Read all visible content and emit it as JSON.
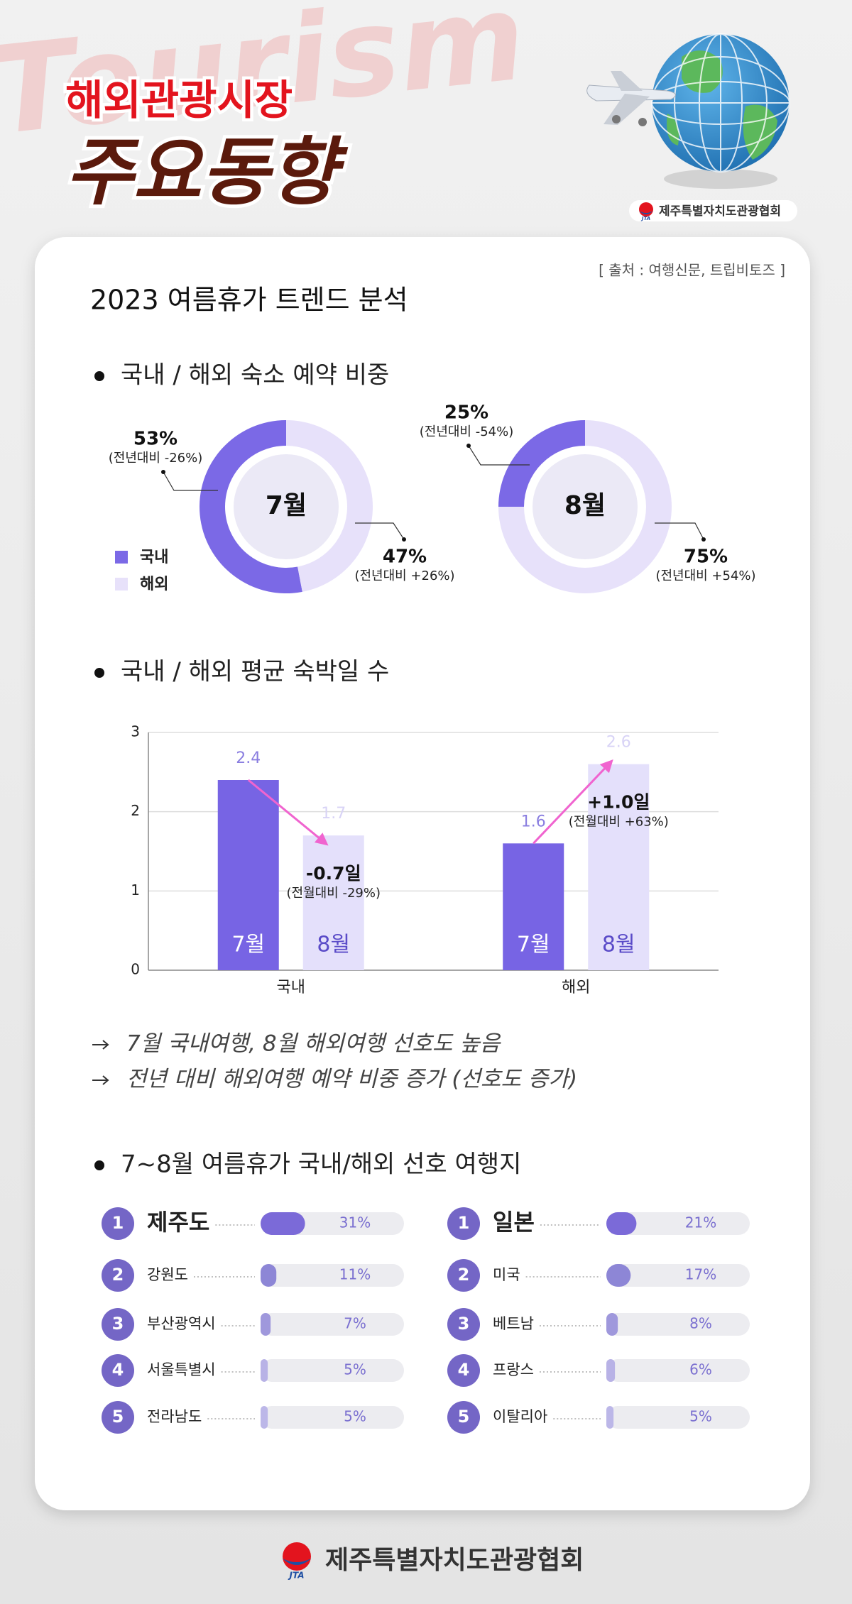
{
  "header": {
    "watermark": "Tourism",
    "title_line1": "해외관광시장",
    "title_line2": "주요동향",
    "org": "제주특별자치도관광협회"
  },
  "logo_text": "JTA",
  "card": {
    "source": "[ 출처 : 여행신문, 트립비토즈 ]",
    "title": "2023 여름휴가 트렌드 분석",
    "headings": [
      "국내 / 해외 숙소 예약 비중",
      "국내 / 해외 평균 숙박일 수",
      "7~8월 여름휴가 국내/해외 선호 여행지"
    ],
    "notes": [
      "7월 국내여행, 8월 해외여행 선호도 높음",
      "전년 대비 해외여행 예약 비중 증가 (선호도 증가)"
    ]
  },
  "chart_data": [
    {
      "type": "donut",
      "center_label": "7월",
      "categories": [
        "국내",
        "해외"
      ],
      "values": [
        53,
        47
      ],
      "value_labels": [
        "53%",
        "47%"
      ],
      "changes": [
        "(전년대비 -26%)",
        "(전년대비 +26%)"
      ],
      "colors": [
        "#7b69e6",
        "#e7e1fa"
      ]
    },
    {
      "type": "donut",
      "center_label": "8월",
      "values": [
        25,
        75
      ],
      "value_labels": [
        "25%",
        "75%"
      ],
      "changes": [
        "(전년대비 -54%)",
        "(전년대비 +54%)"
      ],
      "colors": [
        "#7b69e6",
        "#e7e1fa"
      ]
    },
    {
      "type": "bar",
      "categories": [
        "국내",
        "해외"
      ],
      "series": [
        {
          "name": "7월",
          "color": "#7764e4",
          "label_color": "#8a7ee0",
          "values": [
            2.4,
            1.6
          ]
        },
        {
          "name": "8월",
          "color": "#e4e0fb",
          "label_color": "#d8d3f6",
          "values": [
            1.7,
            2.6
          ]
        }
      ],
      "ylim": [
        0,
        3
      ],
      "yticks": [
        0,
        1,
        2,
        3
      ],
      "grid": true,
      "arrow_color": "#f064cf",
      "annotations": [
        {
          "label": "-0.7일",
          "note": "(전월대비 -29%)"
        },
        {
          "label": "+1.0일",
          "note": "(전월대비 +63%)"
        }
      ]
    },
    {
      "type": "hbar",
      "ranks": [
        1,
        2,
        3,
        4,
        5
      ],
      "categories": [
        "제주도",
        "강원도",
        "부산광역시",
        "서울특별시",
        "전라남도"
      ],
      "values": [
        31,
        11,
        7,
        5,
        5
      ],
      "value_labels": [
        "31%",
        "11%",
        "7%",
        "5%",
        "5%"
      ],
      "colors": [
        "#7b6ad8",
        "#8d86d6",
        "#9f98dc",
        "#b8b2e6",
        "#bcb7e8"
      ],
      "xlim": [
        0,
        100
      ],
      "track_color": "#ececf0"
    },
    {
      "type": "hbar",
      "ranks": [
        1,
        2,
        3,
        4,
        5
      ],
      "categories": [
        "일본",
        "미국",
        "베트남",
        "프랑스",
        "이탈리아"
      ],
      "values": [
        21,
        17,
        8,
        6,
        5
      ],
      "value_labels": [
        "21%",
        "17%",
        "8%",
        "6%",
        "5%"
      ],
      "colors": [
        "#7b6ad8",
        "#8d86d6",
        "#9f98dc",
        "#b8b2e6",
        "#bcb7e8"
      ],
      "xlim": [
        0,
        100
      ],
      "track_color": "#ececf0"
    }
  ],
  "footer": {
    "org": "제주특별자치도관광협회"
  }
}
